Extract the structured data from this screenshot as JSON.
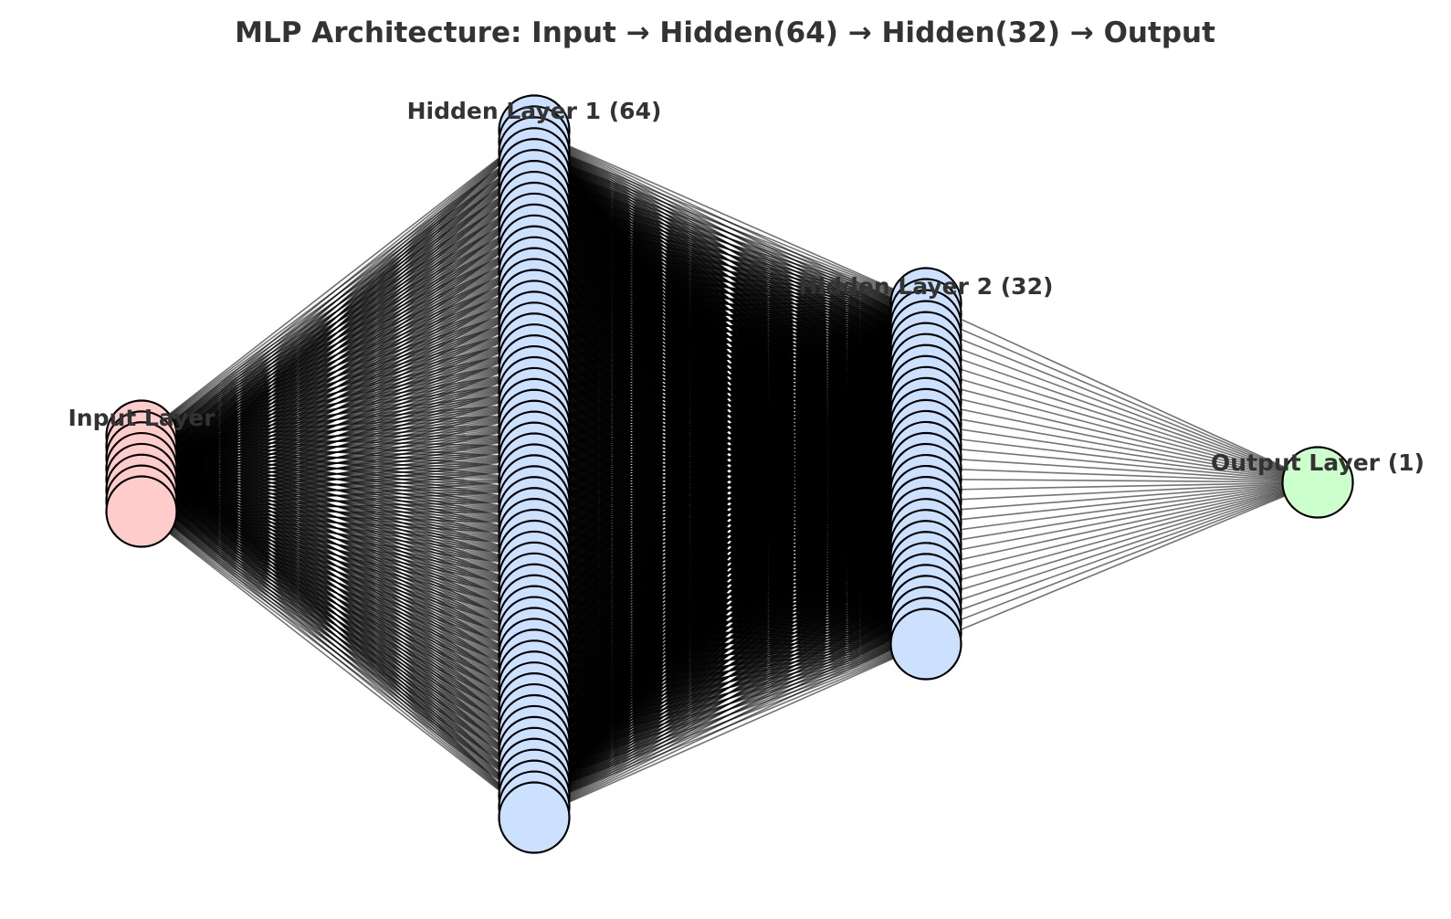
{
  "title": "MLP Architecture: Input → Hidden(64) → Hidden(32) → Output",
  "colors": {
    "text": "#333333",
    "edge": "#000000",
    "neuron_stroke": "#000000",
    "background": "#ffffff"
  },
  "layers": [
    {
      "id": "input",
      "label": "Input Layer",
      "neurons": 8,
      "fill": "#ffcccc"
    },
    {
      "id": "hidden1",
      "label": "Hidden Layer 1 (64)",
      "neurons": 64,
      "fill": "#cce0ff"
    },
    {
      "id": "hidden2",
      "label": "Hidden Layer 2 (32)",
      "neurons": 32,
      "fill": "#cce0ff"
    },
    {
      "id": "output",
      "label": "Output Layer (1)",
      "neurons": 1,
      "fill": "#ccffcc"
    }
  ]
}
